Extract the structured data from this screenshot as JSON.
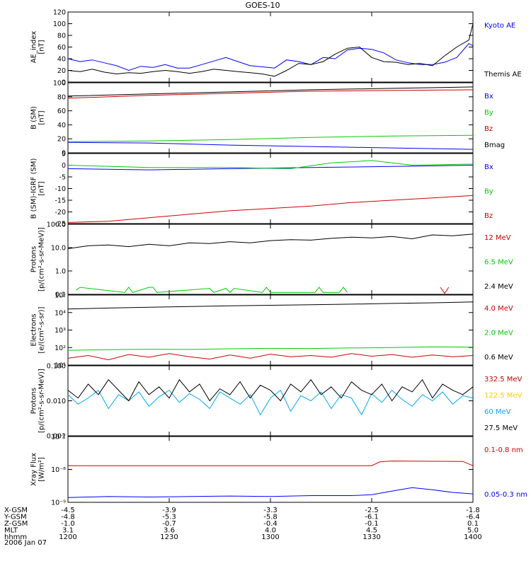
{
  "title": "GOES-10",
  "date_label": "2006 Jan 07",
  "orbit_table": {
    "row_labels": [
      "X-GSM",
      "Y-GSM",
      "Z-GSM",
      "MLT",
      "hhmm"
    ],
    "columns": [
      {
        "time": "1200",
        "values": [
          "-4.5",
          "-4.8",
          "-1.0",
          "3.1",
          "1200"
        ]
      },
      {
        "time": "1230",
        "values": [
          "-3.9",
          "-5.3",
          "-0.7",
          "3.6",
          "1230"
        ]
      },
      {
        "time": "1300",
        "values": [
          "-3.3",
          "-5.8",
          "-0.4",
          "4.0",
          "1300"
        ]
      },
      {
        "time": "1330",
        "values": [
          "-2.5",
          "-6.1",
          "-0.1",
          "4.5",
          "1330"
        ]
      },
      {
        "time": "1400",
        "values": [
          "-1.8",
          "-6.4",
          "0.1",
          "5.0",
          "1400"
        ]
      }
    ]
  },
  "chart_data": [
    {
      "type": "line",
      "ylabel": "AE_index\n[nT]",
      "ylim": [
        0,
        120
      ],
      "yscale": "linear",
      "yticks": [
        0,
        20,
        40,
        60,
        80,
        100,
        120
      ],
      "yticklabels": [
        "0",
        "20",
        "40",
        "60",
        "80",
        "100",
        "120"
      ],
      "xlim": [
        1200,
        1400
      ],
      "series": [
        {
          "name": "Kyoto AE",
          "color": "#0000ff",
          "x": [
            1200,
            1206,
            1212,
            1218,
            1224,
            1230,
            1236,
            1242,
            1248,
            1254,
            1260,
            1266,
            1272,
            1278,
            1284,
            1290,
            1296,
            1302,
            1308,
            1314,
            1320,
            1326,
            1332,
            1338,
            1344,
            1350,
            1356,
            1362,
            1368,
            1374,
            1380,
            1386,
            1392,
            1398,
            1400
          ],
          "y": [
            40,
            35,
            38,
            33,
            28,
            20,
            27,
            25,
            30,
            24,
            24,
            30,
            36,
            42,
            35,
            28,
            26,
            24,
            38,
            35,
            30,
            42,
            40,
            55,
            58,
            56,
            50,
            38,
            33,
            30,
            30,
            34,
            42,
            66,
            62
          ]
        },
        {
          "name": "Themis AE",
          "color": "#000000",
          "x": [
            1200,
            1206,
            1212,
            1218,
            1224,
            1230,
            1236,
            1242,
            1248,
            1254,
            1260,
            1266,
            1272,
            1278,
            1284,
            1290,
            1296,
            1302,
            1308,
            1314,
            1320,
            1326,
            1332,
            1338,
            1344,
            1350,
            1356,
            1362,
            1368,
            1374,
            1380,
            1386,
            1392,
            1398,
            1400
          ],
          "y": [
            20,
            18,
            22,
            17,
            14,
            16,
            15,
            18,
            20,
            18,
            15,
            18,
            22,
            20,
            18,
            16,
            14,
            10,
            20,
            32,
            30,
            35,
            48,
            58,
            60,
            42,
            35,
            34,
            30,
            32,
            28,
            45,
            60,
            72,
            100
          ]
        }
      ]
    },
    {
      "type": "line",
      "ylabel": "B (SM)\n[nT]",
      "ylim": [
        0,
        100
      ],
      "yscale": "linear",
      "yticks": [
        0,
        20,
        40,
        60,
        80,
        100
      ],
      "yticklabels": [
        "0",
        "20",
        "40",
        "60",
        "80",
        "100"
      ],
      "xlim": [
        1200,
        1400
      ],
      "series": [
        {
          "name": "Bx",
          "color": "#0000ff",
          "x": [
            1200,
            1240,
            1280,
            1320,
            1360,
            1400
          ],
          "y": [
            15,
            14,
            11,
            9,
            7,
            5
          ]
        },
        {
          "name": "By",
          "color": "#00cc00",
          "x": [
            1200,
            1240,
            1280,
            1320,
            1360,
            1400
          ],
          "y": [
            16,
            17,
            19,
            22,
            24,
            25
          ]
        },
        {
          "name": "Bz",
          "color": "#cc0000",
          "x": [
            1200,
            1240,
            1280,
            1320,
            1360,
            1400
          ],
          "y": [
            78,
            82,
            85,
            88,
            89,
            90
          ]
        },
        {
          "name": "Bmag",
          "color": "#000000",
          "x": [
            1200,
            1240,
            1280,
            1320,
            1360,
            1400
          ],
          "y": [
            81,
            84,
            87,
            90,
            92,
            94
          ]
        }
      ]
    },
    {
      "type": "line",
      "ylabel": "B (SM)-IGRF (SM)\n[nT]",
      "ylim": [
        -25,
        5
      ],
      "yscale": "linear",
      "yticks": [
        -25,
        -20,
        -15,
        -10,
        -5,
        0,
        5
      ],
      "yticklabels": [
        "-25",
        "-20",
        "-15",
        "-10",
        "-5",
        "0",
        "5"
      ],
      "xlim": [
        1200,
        1400
      ],
      "series": [
        {
          "name": "Bx",
          "color": "#0000ff",
          "x": [
            1200,
            1240,
            1280,
            1320,
            1360,
            1400
          ],
          "y": [
            -1.5,
            -2,
            -1.5,
            -1,
            -0.5,
            0
          ]
        },
        {
          "name": "By",
          "color": "#00cc00",
          "x": [
            1200,
            1240,
            1280,
            1310,
            1330,
            1350,
            1370,
            1400
          ],
          "y": [
            0,
            -1,
            -1,
            -1.5,
            1,
            2,
            0,
            0.5
          ]
        },
        {
          "name": "Bz",
          "color": "#cc0000",
          "x": [
            1200,
            1220,
            1240,
            1260,
            1280,
            1300,
            1320,
            1340,
            1360,
            1380,
            1400
          ],
          "y": [
            -24.5,
            -24,
            -22.5,
            -21,
            -19.5,
            -18.5,
            -17.5,
            -16,
            -15,
            -14,
            -13
          ]
        }
      ]
    },
    {
      "type": "line",
      "ylabel": "Protons\n[p/(cm²-s-sr-MeV)]",
      "ylim": [
        0.1,
        100
      ],
      "yscale": "log",
      "yticks": [
        0.1,
        1,
        10,
        100
      ],
      "yticklabels": [
        "0.1",
        "1.0",
        "10.0",
        "100.0"
      ],
      "xlim": [
        1200,
        1400
      ],
      "series": [
        {
          "name": "12 MeV",
          "color": "#cc0000",
          "x": [
            1384,
            1386,
            1388
          ],
          "y": [
            0.2,
            0.11,
            0.2
          ]
        },
        {
          "name": "6.5 MeV",
          "color": "#00cc00",
          "x": [
            1204,
            1206,
            1228,
            1230,
            1232,
            1240,
            1242,
            1244,
            1270,
            1272,
            1278,
            1280,
            1282,
            1296,
            1298,
            1300,
            1322,
            1324,
            1326,
            1334,
            1336,
            1338
          ],
          "y": [
            0.15,
            0.2,
            0.12,
            0.2,
            0.12,
            0.2,
            0.2,
            0.12,
            0.18,
            0.12,
            0.18,
            0.12,
            0.18,
            0.12,
            0.2,
            0.12,
            0.12,
            0.2,
            0.12,
            0.12,
            0.2,
            0.12
          ]
        },
        {
          "name": "2.4 MeV",
          "color": "#000000",
          "x": [
            1200,
            1210,
            1220,
            1230,
            1240,
            1250,
            1260,
            1270,
            1280,
            1290,
            1300,
            1310,
            1320,
            1330,
            1340,
            1350,
            1360,
            1370,
            1380,
            1390,
            1400
          ],
          "y": [
            9,
            12,
            13,
            11,
            14,
            12,
            16,
            15,
            18,
            16,
            20,
            22,
            21,
            25,
            28,
            26,
            30,
            24,
            35,
            32,
            38
          ]
        }
      ]
    },
    {
      "type": "line",
      "ylabel": "Electrons\n[e/(cm²-s-sr)]",
      "ylim": [
        10,
        100000
      ],
      "yscale": "log",
      "yticks": [
        10,
        100,
        1000,
        10000,
        100000
      ],
      "yticklabels": [
        "10¹",
        "10²",
        "10³",
        "10⁴",
        "10⁵"
      ],
      "xlim": [
        1200,
        1400
      ],
      "series": [
        {
          "name": "4.0 MeV",
          "color": "#cc0000",
          "x": [
            1200,
            1210,
            1220,
            1230,
            1240,
            1250,
            1260,
            1270,
            1280,
            1290,
            1300,
            1310,
            1320,
            1330,
            1340,
            1350,
            1360,
            1370,
            1380,
            1390,
            1400
          ],
          "y": [
            25,
            35,
            20,
            40,
            28,
            45,
            30,
            22,
            38,
            25,
            42,
            30,
            35,
            28,
            45,
            32,
            40,
            28,
            38,
            30,
            35
          ]
        },
        {
          "name": "2.0 MeV",
          "color": "#00cc00",
          "x": [
            1200,
            1220,
            1240,
            1260,
            1280,
            1300,
            1320,
            1340,
            1360,
            1380,
            1400
          ],
          "y": [
            70,
            75,
            80,
            78,
            85,
            90,
            88,
            95,
            100,
            110,
            105
          ]
        },
        {
          "name": "0.6 MeV",
          "color": "#000000",
          "x": [
            1200,
            1220,
            1240,
            1260,
            1280,
            1300,
            1320,
            1340,
            1360,
            1380,
            1400
          ],
          "y": [
            16000,
            18000,
            20000,
            22000,
            24000,
            26000,
            28000,
            30000,
            33000,
            36000,
            40000
          ]
        }
      ]
    },
    {
      "type": "line",
      "ylabel": "Protons\n[p/(cm²-s-sr-MeV)]",
      "ylim": [
        0.001,
        0.1
      ],
      "yscale": "log",
      "yticks": [
        0.001,
        0.01,
        0.1
      ],
      "yticklabels": [
        "0.001",
        "0.010",
        "0.100"
      ],
      "xlim": [
        1200,
        1400
      ],
      "series": [
        {
          "name": "332.5 MeV",
          "color": "#cc0000",
          "x": [],
          "y": []
        },
        {
          "name": "122.5 MeV",
          "color": "#ffcc00",
          "x": [],
          "y": []
        },
        {
          "name": "60 MeV",
          "color": "#00aaee",
          "x": [
            1200,
            1205,
            1210,
            1215,
            1220,
            1225,
            1230,
            1235,
            1240,
            1245,
            1250,
            1255,
            1260,
            1265,
            1270,
            1275,
            1280,
            1285,
            1290,
            1295,
            1300,
            1305,
            1310,
            1315,
            1320,
            1325,
            1330,
            1335,
            1340,
            1345,
            1350,
            1355,
            1360,
            1365,
            1370,
            1375,
            1380,
            1385,
            1390,
            1395,
            1400
          ],
          "y": [
            0.015,
            0.008,
            0.012,
            0.02,
            0.006,
            0.015,
            0.01,
            0.018,
            0.007,
            0.013,
            0.02,
            0.009,
            0.016,
            0.011,
            0.006,
            0.018,
            0.012,
            0.008,
            0.015,
            0.004,
            0.012,
            0.02,
            0.005,
            0.014,
            0.01,
            0.018,
            0.006,
            0.015,
            0.012,
            0.004,
            0.016,
            0.009,
            0.02,
            0.011,
            0.007,
            0.015,
            0.01,
            0.018,
            0.008,
            0.014,
            0.012
          ]
        },
        {
          "name": "27.5 MeV",
          "color": "#000000",
          "x": [
            1200,
            1205,
            1210,
            1215,
            1220,
            1225,
            1230,
            1235,
            1240,
            1245,
            1250,
            1255,
            1260,
            1265,
            1270,
            1275,
            1280,
            1285,
            1290,
            1295,
            1300,
            1305,
            1310,
            1315,
            1320,
            1325,
            1330,
            1335,
            1340,
            1345,
            1350,
            1355,
            1360,
            1365,
            1370,
            1375,
            1380,
            1385,
            1390,
            1395,
            1400
          ],
          "y": [
            0.02,
            0.012,
            0.03,
            0.015,
            0.04,
            0.02,
            0.01,
            0.035,
            0.015,
            0.025,
            0.012,
            0.04,
            0.018,
            0.03,
            0.01,
            0.022,
            0.015,
            0.035,
            0.012,
            0.028,
            0.02,
            0.01,
            0.03,
            0.018,
            0.04,
            0.015,
            0.025,
            0.012,
            0.035,
            0.02,
            0.015,
            0.03,
            0.01,
            0.025,
            0.018,
            0.04,
            0.012,
            0.03,
            0.02,
            0.015,
            0.025
          ]
        }
      ]
    },
    {
      "type": "line",
      "ylabel": "Xray Flux\n[W/m²]",
      "ylim": [
        1e-09,
        1e-07
      ],
      "yscale": "log",
      "yticks": [
        1e-09,
        1e-08,
        1e-07
      ],
      "yticklabels": [
        "10⁻⁹",
        "10⁻⁸",
        "10⁻⁷"
      ],
      "xlim": [
        1200,
        1400
      ],
      "series": [
        {
          "name": "0.1-0.8 nm",
          "color": "#cc0000",
          "x": [
            1200,
            1350,
            1354,
            1360,
            1395,
            1400
          ],
          "y": [
            1.3e-08,
            1.3e-08,
            1.7e-08,
            1.8e-08,
            1.75e-08,
            1.3e-08
          ]
        },
        {
          "name": "0.05-0.3 nm",
          "color": "#0000ff",
          "x": [
            1200,
            1220,
            1240,
            1260,
            1280,
            1300,
            1320,
            1340,
            1350,
            1360,
            1370,
            1380,
            1390,
            1400
          ],
          "y": [
            1.4e-09,
            1.5e-09,
            1.45e-09,
            1.5e-09,
            1.55e-09,
            1.5e-09,
            1.6e-09,
            1.6e-09,
            1.7e-09,
            2.2e-09,
            2.8e-09,
            2.4e-09,
            2e-09,
            1.8e-09
          ]
        }
      ]
    }
  ]
}
